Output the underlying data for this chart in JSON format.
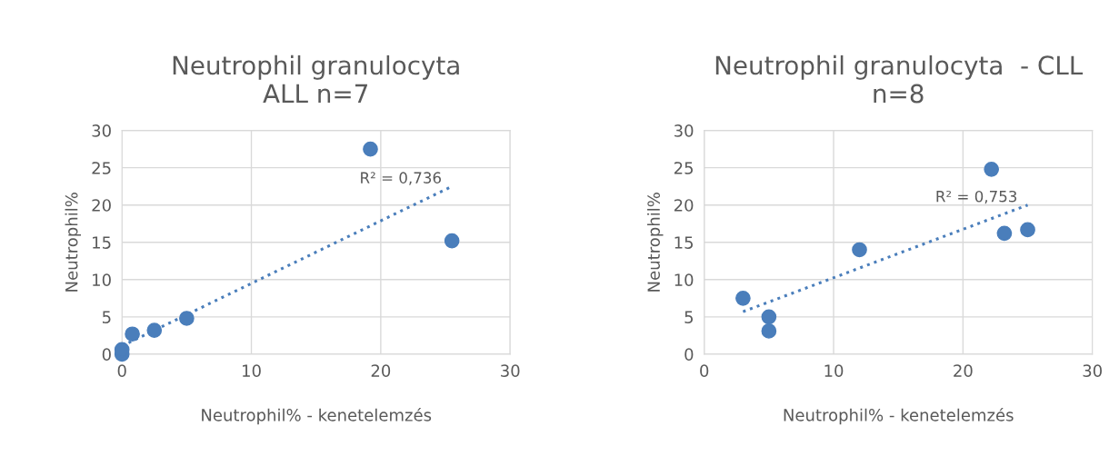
{
  "chart_data": [
    {
      "type": "scatter",
      "title": "Neutrophil granulocyta\nALL n=7",
      "xlabel": "Neutrophil% - kenetelemzés",
      "ylabel": "Neutrophil%",
      "xlim": [
        0,
        30
      ],
      "ylim": [
        0,
        30
      ],
      "xticks": [
        0,
        10,
        20,
        30
      ],
      "yticks": [
        0,
        5,
        10,
        15,
        20,
        25,
        30
      ],
      "grid": true,
      "legend": false,
      "marker": "circle",
      "series": [
        {
          "color": "#4a7ebb",
          "x": [
            0,
            0,
            0.8,
            2.5,
            5,
            19.2,
            25.5
          ],
          "values": [
            0,
            0.6,
            2.7,
            3.2,
            4.8,
            27.5,
            15.2
          ]
        },
        {
          "type": "line",
          "color": "#4a7ebb",
          "line_style": "dotted",
          "marker": "none",
          "x": [
            0,
            25.5
          ],
          "values": [
            1.1,
            22.5
          ]
        }
      ],
      "annotations": [
        {
          "text": "R² = 0,736",
          "x": 25.5,
          "y": 22.5
        }
      ]
    },
    {
      "type": "scatter",
      "title": "Neutrophil granulocyta  - CLL\nn=8",
      "xlabel": "Neutrophil% - kenetelemzés",
      "ylabel": "Neutrophil%",
      "xlim": [
        0,
        30
      ],
      "ylim": [
        0,
        30
      ],
      "xticks": [
        0,
        10,
        20,
        30
      ],
      "yticks": [
        0,
        5,
        10,
        15,
        20,
        25,
        30
      ],
      "grid": true,
      "legend": false,
      "marker": "circle",
      "series": [
        {
          "color": "#4a7ebb",
          "x": [
            3,
            5,
            5,
            12,
            22.2,
            23.2,
            25
          ],
          "values": [
            7.5,
            5,
            3.1,
            14,
            24.8,
            16.2,
            16.7
          ]
        },
        {
          "type": "line",
          "color": "#4a7ebb",
          "line_style": "dotted",
          "marker": "none",
          "x": [
            3,
            25
          ],
          "values": [
            5.7,
            20
          ]
        }
      ],
      "annotations": [
        {
          "text": "R² = 0,753",
          "x": 25,
          "y": 20
        }
      ]
    }
  ]
}
